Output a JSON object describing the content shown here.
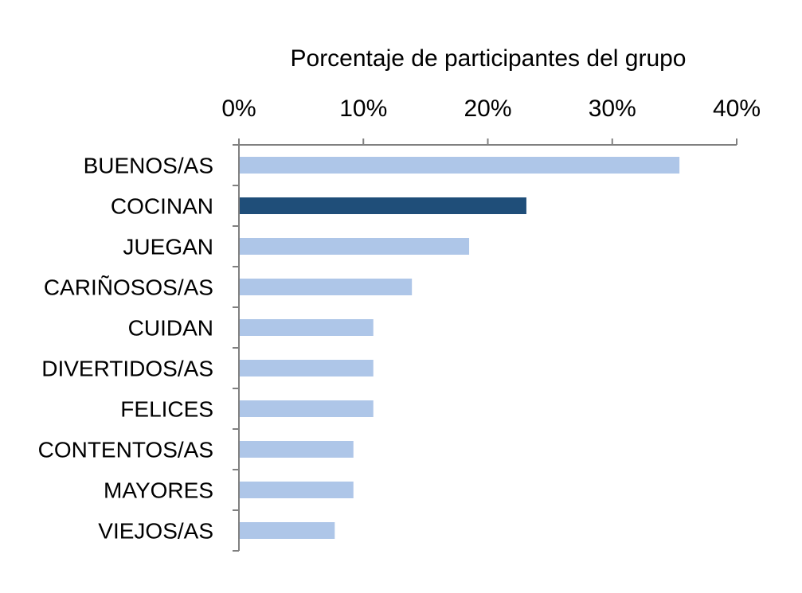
{
  "chart_data": {
    "type": "bar",
    "orientation": "horizontal",
    "title": "Porcentaje de participantes del grupo",
    "categories": [
      "BUENOS/AS",
      "COCINAN",
      "JUEGAN",
      "CARIÑOSOS/AS",
      "CUIDAN",
      "DIVERTIDOS/AS",
      "FELICES",
      "CONTENTOS/AS",
      "MAYORES",
      "VIEJOS/AS"
    ],
    "values": [
      35.4,
      23.1,
      18.5,
      13.9,
      10.8,
      10.8,
      10.8,
      9.2,
      9.2,
      7.7
    ],
    "xlim": [
      0,
      40
    ],
    "xticks": [
      "0%",
      "10%",
      "20%",
      "30%",
      "40%"
    ],
    "axis_position": "top",
    "grid": false,
    "legend": "none",
    "colors": {
      "default_bar": "#aec6e8",
      "highlight_bar": "#1f4e79",
      "axis": "#808080"
    },
    "highlight_index": 1
  }
}
